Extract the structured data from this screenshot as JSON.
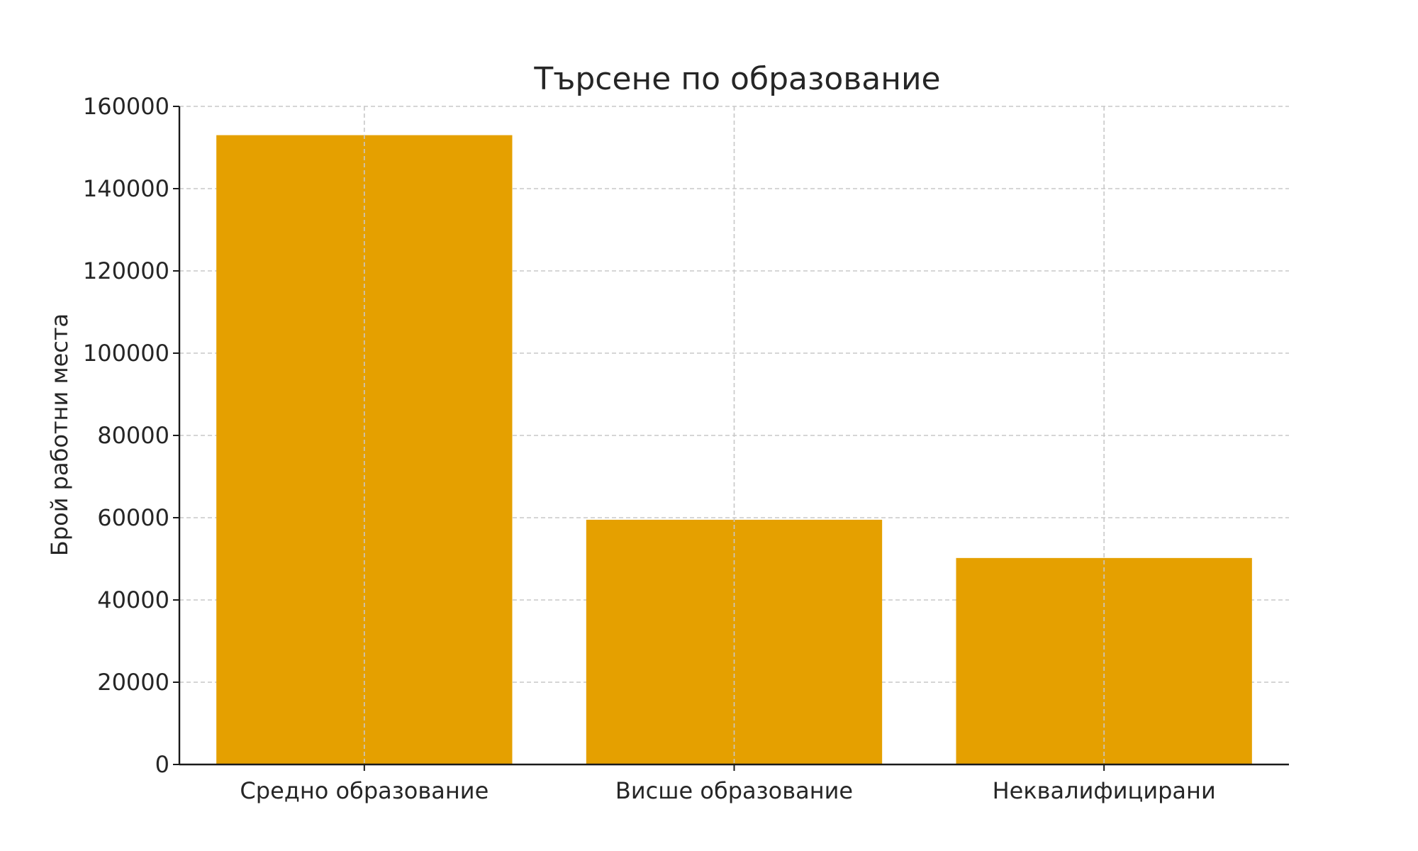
{
  "chart_data": {
    "type": "bar",
    "title": "Търсене по образование",
    "xlabel": "",
    "ylabel": "Брой работни места",
    "categories": [
      "Средно образование",
      "Висше образование",
      "Неквалифицирани"
    ],
    "values": [
      153000,
      59500,
      50200
    ],
    "ylim": [
      0,
      160000
    ],
    "yticks": [
      0,
      20000,
      40000,
      60000,
      80000,
      100000,
      120000,
      140000,
      160000
    ],
    "grid": true,
    "legend": "none",
    "bar_color": "#E5A000"
  }
}
